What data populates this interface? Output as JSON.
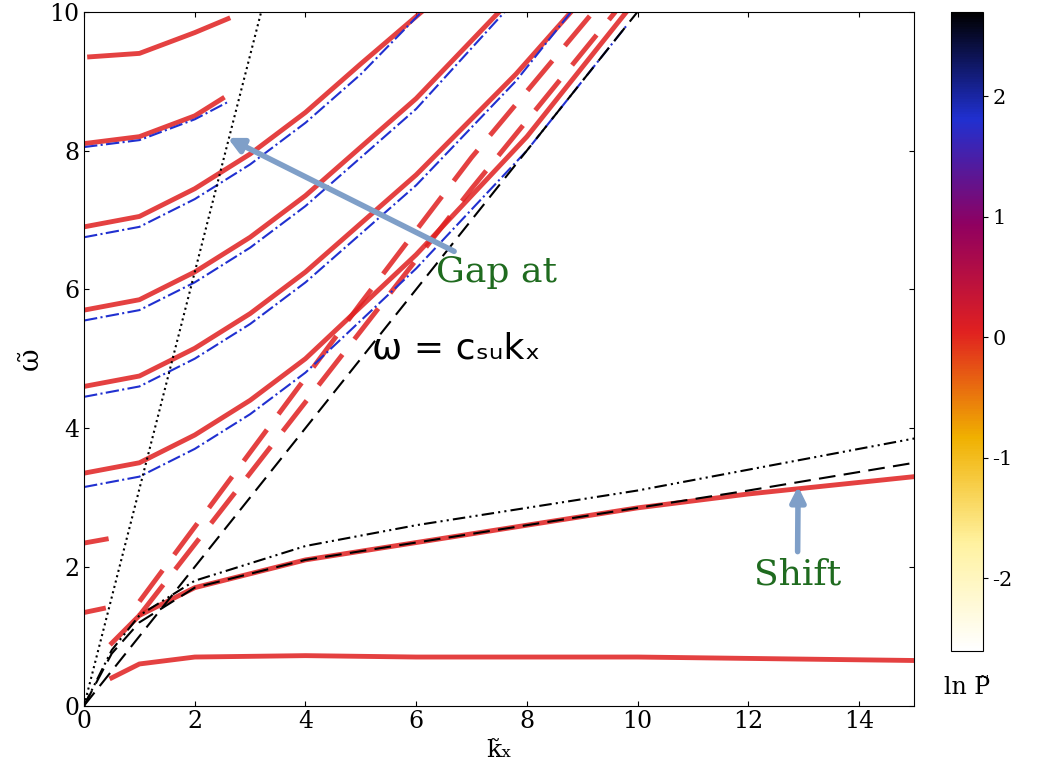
{
  "chart_data": {
    "type": "line",
    "xlabel": "k̃ₓ",
    "ylabel": "ω̃",
    "xlim": [
      0,
      15
    ],
    "ylim": [
      0,
      10
    ],
    "xticks": [
      0,
      2,
      4,
      6,
      8,
      10,
      12,
      14
    ],
    "yticks": [
      0,
      2,
      4,
      6,
      8,
      10
    ],
    "grid": false,
    "annotations": [
      "Gap at",
      "ω = cₛᵤkₓ",
      "Shift"
    ],
    "colorbar": {
      "label": "ln P̃",
      "range": [
        -2.6,
        2.7
      ],
      "ticks": [
        -2,
        -1,
        0,
        1,
        2
      ],
      "colors": [
        "#ffffff",
        "#fff2a0",
        "#f0b000",
        "#e02020",
        "#900060",
        "#2030d0",
        "#000000"
      ]
    },
    "series": [
      {
        "type": "line",
        "color": "#e02020",
        "line_style": "solid",
        "x": [
          0,
          1,
          2,
          3,
          4,
          6,
          8,
          9.8
        ],
        "values": [
          3.35,
          3.5,
          3.9,
          4.4,
          5.0,
          6.5,
          8.2,
          10
        ]
      },
      {
        "type": "line",
        "color": "#e02020",
        "line_style": "solid",
        "x": [
          0,
          1,
          2,
          3,
          4,
          6,
          7.8,
          8.8
        ],
        "values": [
          4.6,
          4.75,
          5.15,
          5.65,
          6.25,
          7.65,
          9.1,
          10
        ]
      },
      {
        "type": "line",
        "color": "#e02020",
        "line_style": "solid",
        "x": [
          0,
          1,
          2,
          3,
          4,
          6,
          7.5
        ],
        "values": [
          5.7,
          5.85,
          6.25,
          6.75,
          7.35,
          8.75,
          10
        ]
      },
      {
        "type": "line",
        "color": "#e02020",
        "line_style": "solid",
        "x": [
          0,
          1,
          2,
          3,
          4,
          5,
          6.1
        ],
        "values": [
          6.9,
          7.05,
          7.45,
          7.95,
          8.55,
          9.25,
          10
        ]
      },
      {
        "type": "line",
        "color": "#e02020",
        "line_style": "solid",
        "x": [
          0,
          1,
          2,
          2.5
        ],
        "values": [
          8.1,
          8.2,
          8.5,
          8.75
        ]
      },
      {
        "type": "line",
        "color": "#e02020",
        "line_style": "solid",
        "x": [
          0.1,
          1,
          2,
          2.6
        ],
        "values": [
          9.35,
          9.4,
          9.7,
          9.9
        ]
      },
      {
        "type": "line",
        "color": "#e02020",
        "line_style": "solid",
        "x": [
          0.05,
          0.4
        ],
        "values": [
          2.35,
          2.4
        ]
      },
      {
        "type": "line",
        "color": "#e02020",
        "line_style": "solid",
        "x": [
          0.05,
          0.35
        ],
        "values": [
          1.35,
          1.4
        ]
      },
      {
        "type": "line",
        "color": "#e02020",
        "line_style": "dashed",
        "x": [
          1,
          3,
          5,
          7,
          9.2
        ],
        "values": [
          1.5,
          3.65,
          5.8,
          7.9,
          10
        ]
      },
      {
        "type": "line",
        "color": "#e02020",
        "line_style": "dashed",
        "x": [
          1,
          3,
          5,
          7,
          9.6
        ],
        "values": [
          1.3,
          3.35,
          5.4,
          7.45,
          10
        ]
      },
      {
        "type": "line",
        "color": "#e02020",
        "line_style": "solid",
        "x": [
          0.5,
          1,
          2,
          4,
          6,
          8,
          10,
          12,
          15
        ],
        "values": [
          0.9,
          1.3,
          1.7,
          2.1,
          2.35,
          2.6,
          2.85,
          3.05,
          3.3
        ]
      },
      {
        "type": "line",
        "color": "#e02020",
        "line_style": "solid",
        "x": [
          0.5,
          1,
          2,
          4,
          6,
          8,
          10,
          12,
          15
        ],
        "values": [
          0.4,
          0.6,
          0.7,
          0.72,
          0.7,
          0.7,
          0.7,
          0.68,
          0.65
        ]
      },
      {
        "type": "line",
        "color": "#2030d0",
        "line_style": "dashdot",
        "x": [
          0,
          1,
          2,
          3,
          4,
          6,
          8,
          9.8
        ],
        "values": [
          3.15,
          3.3,
          3.7,
          4.2,
          4.8,
          6.3,
          8.0,
          9.8
        ]
      },
      {
        "type": "line",
        "color": "#2030d0",
        "line_style": "dashdot",
        "x": [
          0,
          1,
          2,
          3,
          4,
          6,
          7.8,
          8.8
        ],
        "values": [
          4.45,
          4.6,
          5.0,
          5.5,
          6.1,
          7.5,
          9.0,
          10
        ]
      },
      {
        "type": "line",
        "color": "#2030d0",
        "line_style": "dashdot",
        "x": [
          0,
          1,
          2,
          3,
          4,
          6,
          7.6
        ],
        "values": [
          5.55,
          5.7,
          6.1,
          6.6,
          7.2,
          8.6,
          10
        ]
      },
      {
        "type": "line",
        "color": "#2030d0",
        "line_style": "dashdot",
        "x": [
          0,
          1,
          2,
          3,
          4,
          5,
          6.1
        ],
        "values": [
          6.75,
          6.9,
          7.3,
          7.8,
          8.4,
          9.1,
          10
        ]
      },
      {
        "type": "line",
        "color": "#2030d0",
        "line_style": "dashdot",
        "x": [
          0,
          1,
          2,
          2.6
        ],
        "values": [
          8.05,
          8.15,
          8.45,
          8.7
        ]
      },
      {
        "type": "line",
        "color": "#000000",
        "line_style": "dotted",
        "x": [
          0,
          3.2
        ],
        "values": [
          0,
          10
        ]
      },
      {
        "type": "line",
        "color": "#000000",
        "line_style": "dashed",
        "x": [
          0,
          10
        ],
        "values": [
          0,
          10
        ]
      },
      {
        "type": "line",
        "color": "#000000",
        "line_style": "dashdotdot",
        "x": [
          0,
          0.5,
          1,
          2,
          4,
          6,
          8,
          10,
          12,
          15
        ],
        "values": [
          0,
          0.8,
          1.3,
          1.8,
          2.3,
          2.6,
          2.85,
          3.1,
          3.4,
          3.85
        ]
      },
      {
        "type": "line",
        "color": "#000000",
        "line_style": "dashed",
        "x": [
          0,
          0.5,
          1,
          2,
          4,
          6,
          8,
          10,
          12,
          15
        ],
        "values": [
          0,
          0.75,
          1.2,
          1.7,
          2.1,
          2.35,
          2.6,
          2.85,
          3.1,
          3.5
        ]
      }
    ]
  }
}
